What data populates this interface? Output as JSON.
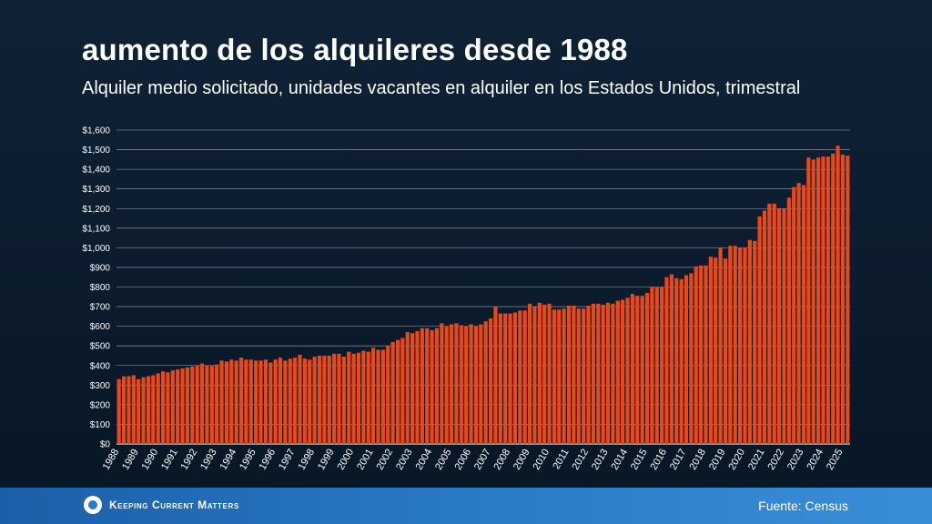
{
  "header": {
    "title": "aumento de los alquileres desde 1988",
    "subtitle": "Alquiler medio solicitado, unidades vacantes en alquiler en los Estados Unidos, trimestral"
  },
  "footer": {
    "brand": "Keeping Current Matters",
    "source": "Fuente: Census"
  },
  "colors": {
    "bar": "#e8481a",
    "grid": "#d0d6dc",
    "text": "#ffffff"
  },
  "chart_data": {
    "type": "bar",
    "ylim": [
      0,
      1600
    ],
    "ytick_step": 100,
    "y_tick_labels": [
      "$0",
      "$100",
      "$200",
      "$300",
      "$400",
      "$500",
      "$600",
      "$700",
      "$800",
      "$900",
      "$1,000",
      "$1,100",
      "$1,200",
      "$1,300",
      "$1,400",
      "$1,500",
      "$1,600"
    ],
    "x_tick_labels": [
      "1988",
      "1989",
      "1990",
      "1991",
      "1992",
      "1993",
      "1994",
      "1995",
      "1996",
      "1997",
      "1998",
      "1999",
      "2000",
      "2001",
      "2002",
      "2003",
      "2004",
      "2005",
      "2006",
      "2007",
      "2008",
      "2009",
      "2010",
      "2011",
      "2012",
      "2013",
      "2014",
      "2015",
      "2016",
      "2017",
      "2018",
      "2019",
      "2020",
      "2021",
      "2022",
      "2023",
      "2024",
      "2025"
    ],
    "grid": true,
    "values": [
      330,
      345,
      345,
      350,
      330,
      340,
      345,
      350,
      360,
      370,
      365,
      375,
      380,
      385,
      390,
      395,
      400,
      410,
      400,
      400,
      405,
      425,
      420,
      430,
      425,
      440,
      430,
      430,
      425,
      425,
      430,
      415,
      430,
      440,
      425,
      435,
      440,
      455,
      435,
      430,
      445,
      450,
      450,
      450,
      460,
      460,
      445,
      470,
      460,
      465,
      475,
      470,
      490,
      480,
      480,
      500,
      520,
      530,
      540,
      570,
      565,
      575,
      590,
      590,
      580,
      590,
      615,
      600,
      610,
      615,
      605,
      600,
      610,
      600,
      610,
      625,
      640,
      700,
      665,
      665,
      665,
      670,
      680,
      680,
      715,
      700,
      720,
      710,
      715,
      685,
      685,
      690,
      705,
      705,
      690,
      690,
      705,
      715,
      715,
      710,
      720,
      715,
      730,
      735,
      745,
      765,
      755,
      755,
      770,
      800,
      800,
      800,
      850,
      865,
      845,
      840,
      860,
      870,
      905,
      910,
      910,
      955,
      950,
      1000,
      945,
      1010,
      1010,
      1000,
      1000,
      1040,
      1035,
      1160,
      1190,
      1225,
      1225,
      1200,
      1200,
      1255,
      1310,
      1330,
      1320,
      1460,
      1450,
      1460,
      1465,
      1465,
      1480,
      1520,
      1475,
      1470
    ]
  }
}
